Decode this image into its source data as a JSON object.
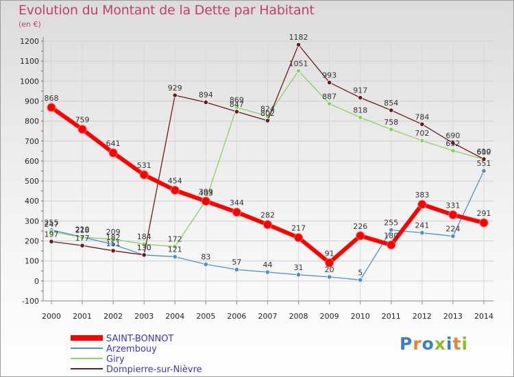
{
  "title": "Evolution du Montant de la Dette par Habitant",
  "subtitle": "(en €)",
  "logo": {
    "text": "Proxiti",
    "colors": [
      "#3a7fc4",
      "#e8842a",
      "#3a7fc4",
      "#8bbd2c",
      "#3a7fc4",
      "#e8842a",
      "#8bbd2c"
    ]
  },
  "chart_data": {
    "type": "line",
    "title": "Evolution du Montant de la Dette par Habitant",
    "ylabel": "(en €)",
    "xlabel": "",
    "ylim": [
      -100,
      1200
    ],
    "y_ticks": [
      "-100",
      "0",
      "100",
      "200",
      "300",
      "400",
      "500",
      "600",
      "700",
      "800",
      "900",
      "1000",
      "1100",
      "1200"
    ],
    "x": [
      "2000",
      "2001",
      "2002",
      "2003",
      "2004",
      "2005",
      "2006",
      "2007",
      "2008",
      "2009",
      "2010",
      "2011",
      "2012",
      "2013",
      "2014"
    ],
    "grid": true,
    "legend_position": "bottom-left",
    "series": [
      {
        "name": "SAINT-BONNOT",
        "color": "#ff0000",
        "values": [
          868,
          759,
          641,
          531,
          454,
          399,
          344,
          282,
          217,
          91,
          226,
          180,
          383,
          331,
          291
        ],
        "labels": [
          "868",
          "759",
          "641",
          "531",
          "454",
          "399",
          "344",
          "282",
          "217",
          "91",
          "226",
          "180",
          "383",
          "331",
          "291"
        ],
        "emphasis": true
      },
      {
        "name": "Arzembouy",
        "color": "#4a90cc",
        "values": [
          255,
          220,
          182,
          130,
          121,
          83,
          57,
          44,
          31,
          20,
          5,
          255,
          241,
          224,
          551
        ],
        "labels": [
          "255",
          "220",
          "182",
          "130",
          "121",
          "83",
          "57",
          "44",
          "31",
          "20",
          "5",
          "255",
          "241",
          "224",
          "551"
        ]
      },
      {
        "name": "Giry",
        "color": "#88d060",
        "values": [
          247,
          218,
          209,
          184,
          172,
          403,
          869,
          824,
          1051,
          887,
          818,
          758,
          702,
          652,
          609
        ],
        "labels": [
          "247",
          "218",
          "209",
          "184",
          "172",
          "403",
          "869",
          "824",
          "1051",
          "887",
          "818",
          "758",
          "702",
          "652",
          "609"
        ]
      },
      {
        "name": "Dompierre-sur-Nièvre",
        "color": "#6b1a1a",
        "values": [
          197,
          177,
          151,
          130,
          929,
          894,
          847,
          802,
          1182,
          993,
          917,
          854,
          784,
          690,
          610
        ],
        "labels": [
          "197",
          "177",
          "151",
          "130",
          "929",
          "894",
          "847",
          "802",
          "1182",
          "993",
          "917",
          "854",
          "784",
          "690",
          "610"
        ]
      }
    ]
  }
}
